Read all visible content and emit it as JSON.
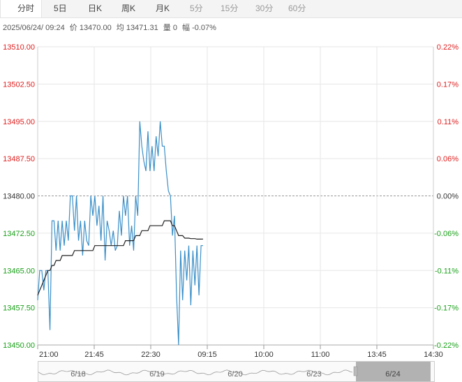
{
  "tabs": [
    {
      "label": "分时",
      "active": true
    },
    {
      "label": "5日"
    },
    {
      "label": "日K"
    },
    {
      "label": "周K"
    },
    {
      "label": "月K"
    },
    {
      "label": "5分"
    },
    {
      "label": "15分"
    },
    {
      "label": "30分"
    },
    {
      "label": "60分"
    }
  ],
  "info": {
    "datetime": "2025/06/24/  09:24",
    "price": "价 13470.00",
    "avg": "均 13471.31",
    "volume": "量 0",
    "change": "幅 -0.07%"
  },
  "colors": {
    "price_line": "#3a8fc8",
    "avg_line": "#222222",
    "up": "#e02020",
    "down": "#1aa01a",
    "neutral": "#333333"
  },
  "chart_data": {
    "type": "line",
    "ylim": [
      13450,
      13510
    ],
    "y_ticks": [
      "13510.00",
      "13502.50",
      "13495.00",
      "13487.50",
      "13480.00",
      "13472.50",
      "13465.00",
      "13457.50",
      "13450.00"
    ],
    "pct_ticks": [
      "0.22%",
      "0.17%",
      "0.11%",
      "0.06%",
      "0.00%",
      "-0.06%",
      "-0.11%",
      "-0.17%",
      "-0.22%"
    ],
    "baseline": 13480,
    "x_ticks": [
      "21:00",
      "21:45",
      "22:30",
      "09:15",
      "10:00",
      "11:00",
      "13:45",
      "14:30"
    ],
    "price_series": [
      13459,
      13465,
      13465,
      13461,
      13465,
      13465,
      13453,
      13475,
      13475,
      13469,
      13475,
      13469,
      13475,
      13470,
      13475,
      13471,
      13480,
      13480,
      13473,
      13480,
      13471,
      13475,
      13468,
      13475,
      13471,
      13470,
      13480,
      13476,
      13480,
      13474,
      13478,
      13471,
      13480,
      13467,
      13475,
      13473,
      13470,
      13473,
      13469,
      13470,
      13477,
      13472,
      13480,
      13476,
      13480,
      13470,
      13474,
      13469,
      13480,
      13476,
      13495,
      13490,
      13487,
      13485,
      13493,
      13485,
      13490,
      13485,
      13492,
      13488,
      13495,
      13490,
      13490,
      13485,
      13481,
      13480,
      13472,
      13476,
      13460,
      13450,
      13469,
      13459,
      13469,
      13463,
      13470,
      13458,
      13469,
      13462,
      13470,
      13460,
      13470,
      13470
    ],
    "avg_series": [
      13460,
      13461,
      13462,
      13463,
      13464,
      13465,
      13465,
      13466,
      13466,
      13467,
      13467,
      13467,
      13468,
      13468,
      13468,
      13468,
      13468,
      13468,
      13469,
      13469,
      13469,
      13469,
      13469,
      13469,
      13469,
      13469,
      13469,
      13469,
      13470,
      13470,
      13470,
      13470,
      13470,
      13470,
      13470,
      13470,
      13470,
      13470,
      13470,
      13470,
      13470,
      13470,
      13470,
      13471,
      13471,
      13471,
      13471,
      13471,
      13472,
      13472,
      13472,
      13473,
      13473,
      13473,
      13473,
      13474,
      13474,
      13474,
      13474,
      13474,
      13474,
      13474,
      13475,
      13475,
      13475,
      13475,
      13474,
      13474,
      13473,
      13472,
      13472,
      13472,
      13471.5,
      13471.5,
      13471.5,
      13471.4,
      13471.4,
      13471.4,
      13471.3,
      13471.3,
      13471.3,
      13471.31
    ],
    "navigator_labels": [
      "6/18",
      "6/19",
      "6/20",
      "6/23",
      "6/24"
    ]
  }
}
